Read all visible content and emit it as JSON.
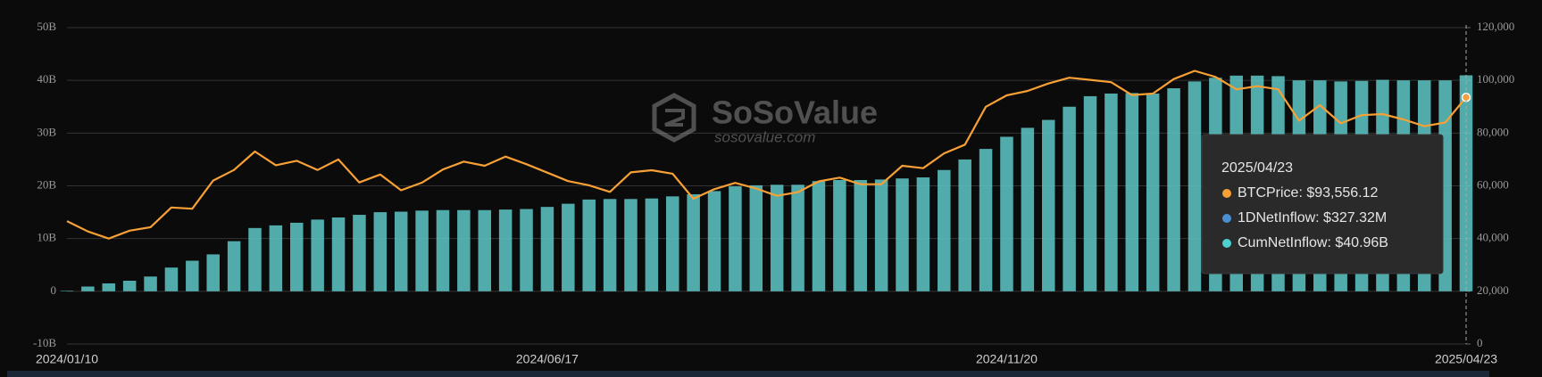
{
  "chart_data": {
    "type": "bar-line",
    "watermark": {
      "title": "SoSoValue",
      "subtitle": "sosovalue.com"
    },
    "categories": [
      "2024/01/10",
      null,
      null,
      null,
      null,
      null,
      null,
      null,
      null,
      null,
      null,
      null,
      null,
      null,
      null,
      null,
      null,
      null,
      null,
      null,
      null,
      null,
      null,
      "2024/06/17",
      null,
      null,
      null,
      null,
      null,
      null,
      null,
      null,
      null,
      null,
      null,
      null,
      null,
      null,
      null,
      null,
      null,
      null,
      null,
      null,
      null,
      "2024/11/20",
      null,
      null,
      null,
      null,
      null,
      null,
      null,
      null,
      null,
      null,
      null,
      null,
      null,
      null,
      null,
      null,
      null,
      null,
      null,
      null,
      null,
      "2025/04/23"
    ],
    "ylim": [
      -10,
      50
    ],
    "yticks": [
      {
        "value": -10,
        "label": "-10B"
      },
      0,
      {
        "value": 10,
        "label": "10B"
      },
      {
        "value": 20,
        "label": "20B"
      },
      {
        "value": 30,
        "label": "30B"
      },
      {
        "value": 40,
        "label": "40B"
      },
      {
        "value": 50,
        "label": "50B"
      }
    ],
    "y2lim": [
      0,
      120000
    ],
    "y2ticks": [
      0,
      {
        "value": 20000,
        "label": "20,000"
      },
      {
        "value": 40000,
        "label": "40,000"
      },
      {
        "value": 60000,
        "label": "60,000"
      },
      {
        "value": 80000,
        "label": "80,000"
      },
      {
        "value": 100000,
        "label": "100,000"
      },
      {
        "value": 120000,
        "label": "120,000"
      }
    ],
    "grid": true,
    "series": [
      {
        "type": "bar",
        "color": "#5ec8c8",
        "values": [
          0.1,
          0.9,
          1.5,
          2.0,
          2.8,
          4.5,
          5.8,
          7.0,
          9.5,
          12.0,
          12.5,
          13.0,
          13.6,
          14.0,
          14.5,
          15.0,
          15.1,
          15.3,
          15.4,
          15.4,
          15.4,
          15.5,
          15.6,
          16.0,
          16.6,
          17.4,
          17.5,
          17.5,
          17.6,
          18.0,
          18.4,
          19.0,
          19.9,
          20.1,
          20.2,
          20.2,
          20.9,
          21.1,
          21.1,
          21.2,
          21.4,
          21.6,
          23.0,
          25.0,
          27.0,
          29.3,
          31.0,
          32.5,
          35.0,
          37.0,
          37.5,
          37.6,
          37.5,
          38.5,
          39.8,
          40.5,
          40.9,
          40.9,
          40.8,
          40.0,
          40.0,
          39.8,
          39.9,
          40.1,
          40.0,
          40.0,
          40.0,
          40.96
        ]
      },
      {
        "type": "line",
        "axis": "y2",
        "color": "#f7a035",
        "values": [
          46600,
          42700,
          40000,
          43000,
          44300,
          51800,
          51300,
          62000,
          66000,
          73000,
          67800,
          69500,
          66000,
          70000,
          61300,
          64300,
          58300,
          61200,
          66200,
          69200,
          67600,
          71100,
          68200,
          65000,
          61800,
          60200,
          57700,
          65100,
          65900,
          64600,
          55100,
          58700,
          61100,
          59000,
          56200,
          57600,
          61700,
          63100,
          60600,
          60600,
          67600,
          66700,
          72300,
          75600,
          90000,
          94300,
          96000,
          98800,
          101000,
          100200,
          99300,
          94400,
          95000,
          100500,
          103600,
          101300,
          96600,
          97800,
          96600,
          84700,
          90600,
          83700,
          86800,
          87200,
          85200,
          82600,
          84000,
          93556.12
        ]
      }
    ],
    "tooltip": {
      "title": "2025/04/23",
      "items": [
        {
          "label": "BTCPrice: $93,556.12",
          "color": "#f7a035"
        },
        {
          "label": "1DNetInflow: $327.32M",
          "color": "#4a8fd4"
        },
        {
          "label": "CumNetInflow: $40.96B",
          "color": "#4fd0d0"
        }
      ]
    }
  }
}
